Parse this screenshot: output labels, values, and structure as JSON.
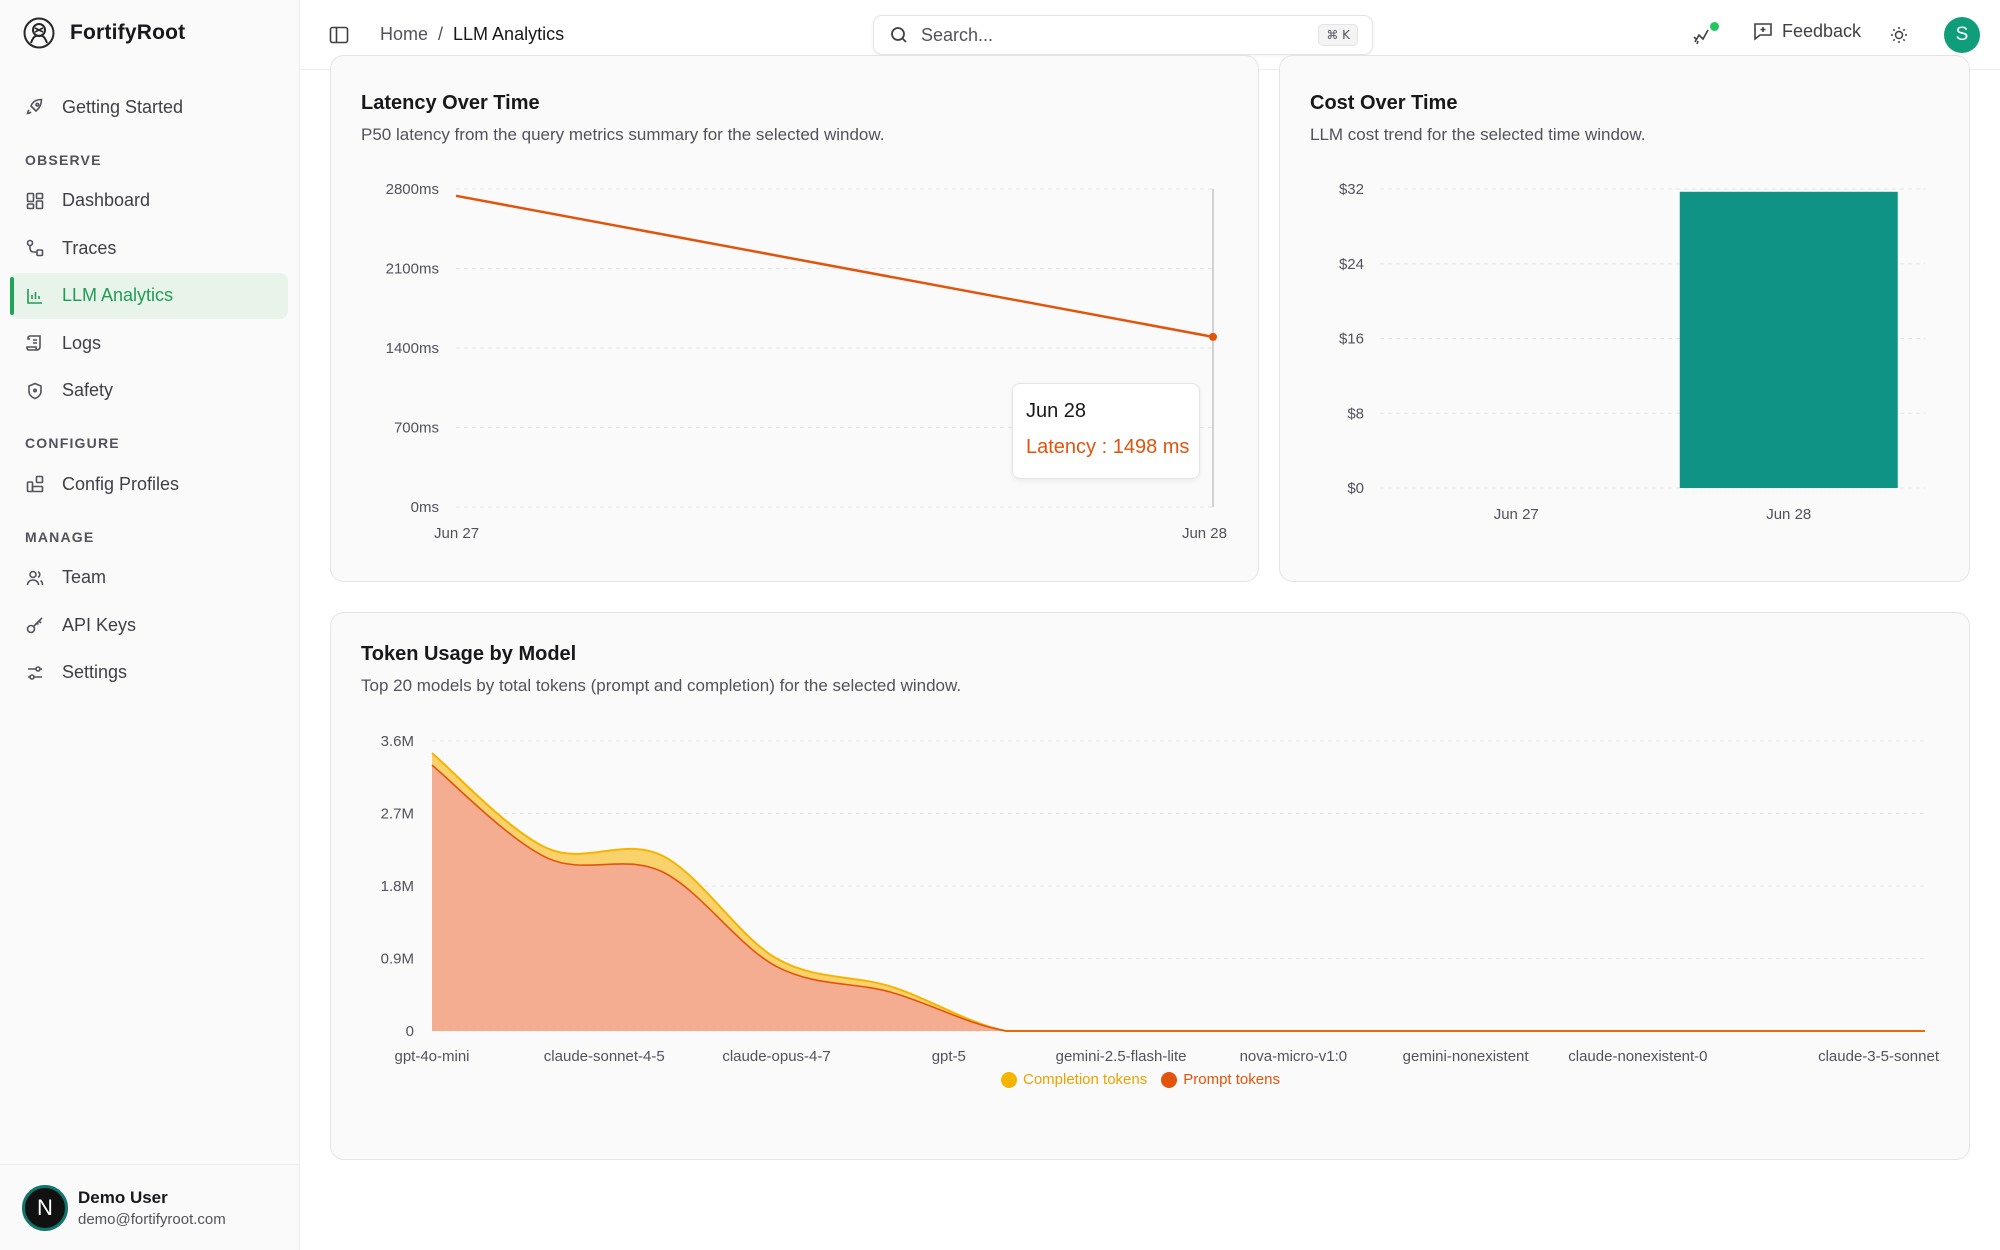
{
  "app": {
    "name": "FortifyRoot"
  },
  "sidebar": {
    "items": [
      {
        "label": "Getting Started"
      },
      {
        "section": "OBSERVE"
      },
      {
        "label": "Dashboard"
      },
      {
        "label": "Traces"
      },
      {
        "label": "LLM Analytics",
        "active": true
      },
      {
        "label": "Logs"
      },
      {
        "label": "Safety"
      },
      {
        "section": "CONFIGURE"
      },
      {
        "label": "Config Profiles"
      },
      {
        "section": "MANAGE"
      },
      {
        "label": "Team"
      },
      {
        "label": "API Keys"
      },
      {
        "label": "Settings"
      }
    ],
    "user": {
      "initial": "N",
      "name": "Demo User",
      "email": "demo@fortifyroot.com"
    }
  },
  "header": {
    "breadcrumb": {
      "home": "Home",
      "separator": "/",
      "current": "LLM Analytics"
    },
    "search": {
      "placeholder": "Search...",
      "shortcut": "⌘ K"
    },
    "feedback_label": "Feedback",
    "avatar_initial": "S"
  },
  "latency_card": {
    "title": "Latency Over Time",
    "desc": "P50 latency from the query metrics summary for the selected window.",
    "tooltip": {
      "date": "Jun 28",
      "label": "Latency : 1498 ms"
    }
  },
  "cost_card": {
    "title": "Cost Over Time",
    "desc": "LLM cost trend for the selected time window."
  },
  "tokens_card": {
    "title": "Token Usage by Model",
    "desc": "Top 20 models by total tokens (prompt and completion) for the selected window.",
    "legend": [
      {
        "name": "Completion tokens",
        "color": "#f5b400"
      },
      {
        "name": "Prompt tokens",
        "color": "#e2540c"
      }
    ]
  },
  "chart_data": [
    {
      "type": "line",
      "x": [
        "Jun 27",
        "Jun 28"
      ],
      "series": [
        {
          "name": "Latency",
          "values": [
            2740,
            1498
          ],
          "color": "#e2540c"
        }
      ],
      "y_ticks": [
        "0ms",
        "700ms",
        "1400ms",
        "2100ms",
        "2800ms"
      ],
      "ylim": [
        0,
        2800
      ],
      "grid": true
    },
    {
      "type": "bar",
      "categories": [
        "Jun 27",
        "Jun 28"
      ],
      "values": [
        0,
        31.7
      ],
      "color": "#0e9384",
      "y_ticks": [
        "$0",
        "$8",
        "$16",
        "$24",
        "$32"
      ],
      "ylim": [
        0,
        32
      ],
      "grid": true
    },
    {
      "type": "area",
      "stacked": true,
      "x_labels": [
        "gpt-4o-mini",
        "claude-sonnet-4-5",
        "claude-opus-4-7",
        "gpt-5",
        "gemini-2.5-flash-lite",
        "nova-micro-v1:0",
        "gemini-nonexistent",
        "claude-nonexistent-0",
        "claude-3-5-sonnet"
      ],
      "x_tick_positions": [
        0,
        1.5,
        3,
        4.5,
        6,
        7.5,
        9,
        10.5,
        13
      ],
      "series": [
        {
          "name": "Prompt tokens",
          "color": "#e2540c",
          "values": [
            3.3,
            2.15,
            1.98,
            0.8,
            0.48,
            0.0,
            0.0,
            0.0,
            0.0,
            0.0,
            0.0,
            0.0,
            0.0,
            0.0
          ]
        },
        {
          "name": "Completion tokens",
          "color": "#f5b400",
          "values": [
            0.15,
            0.12,
            0.2,
            0.1,
            0.07,
            0.0,
            0.0,
            0.0,
            0.0,
            0.0,
            0.0,
            0.0,
            0.0,
            0.0
          ]
        }
      ],
      "y_ticks": [
        "0",
        "0.9M",
        "1.8M",
        "2.7M",
        "3.6M"
      ],
      "ylim": [
        0,
        3.6
      ],
      "unit": "M tokens",
      "grid": true
    }
  ]
}
